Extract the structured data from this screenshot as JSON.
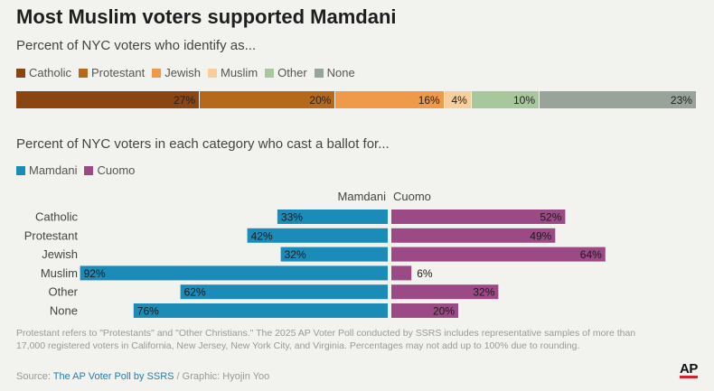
{
  "title": "Most Muslim voters supported Mamdani",
  "composition": {
    "subtitle": "Percent of NYC voters who identify as...",
    "legend": [
      {
        "label": "Catholic",
        "color": "#8b4513"
      },
      {
        "label": "Protestant",
        "color": "#b46a1a"
      },
      {
        "label": "Jewish",
        "color": "#ef9a4a"
      },
      {
        "label": "Muslim",
        "color": "#f7cf9c"
      },
      {
        "label": "Other",
        "color": "#a9c79c"
      },
      {
        "label": "None",
        "color": "#98a39a"
      }
    ],
    "segments": [
      {
        "label": "27%",
        "color": "#8b4513"
      },
      {
        "label": "20%",
        "color": "#b46a1a"
      },
      {
        "label": "16%",
        "color": "#ef9a4a"
      },
      {
        "label": "4%",
        "color": "#f7cf9c"
      },
      {
        "label": "10%",
        "color": "#a9c79c"
      },
      {
        "label": "23%",
        "color": "#98a39a"
      }
    ]
  },
  "vote": {
    "subtitle": "Percent of NYC voters in each category who cast a ballot for...",
    "legend": [
      {
        "label": "Mamdani",
        "color": "#1b8bb8"
      },
      {
        "label": "Cuomo",
        "color": "#9c4a86"
      }
    ]
  },
  "chart_data": [
    {
      "type": "bar",
      "subtype": "stacked-100",
      "title": "Percent of NYC voters who identify as...",
      "categories": [
        "Catholic",
        "Protestant",
        "Jewish",
        "Muslim",
        "Other",
        "None"
      ],
      "values": [
        27,
        20,
        16,
        4,
        10,
        23
      ],
      "value_labels": [
        "27%",
        "20%",
        "16%",
        "4%",
        "10%",
        "23%"
      ]
    },
    {
      "type": "bar",
      "subtype": "diverging",
      "title": "Percent of NYC voters in each category who cast a ballot for...",
      "categories": [
        "Catholic",
        "Protestant",
        "Jewish",
        "Muslim",
        "Other",
        "None"
      ],
      "series": [
        {
          "name": "Mamdani",
          "values": [
            33,
            42,
            32,
            92,
            62,
            76
          ],
          "labels": [
            "33%",
            "42%",
            "32%",
            "92%",
            "62%",
            "76%"
          ]
        },
        {
          "name": "Cuomo",
          "values": [
            52,
            49,
            64,
            6,
            32,
            20
          ],
          "labels": [
            "52%",
            "49%",
            "64%",
            "6%",
            "32%",
            "20%"
          ]
        }
      ],
      "column_headers": [
        "Mamdani",
        "Cuomo"
      ],
      "xlim": [
        0,
        100
      ]
    }
  ],
  "footnote": "Protestant refers to \"Protestants\" and \"Other Christians.\" The 2025 AP Voter Poll conducted by SSRS includes representative samples of more than 17,000 registered voters in California, New Jersey, New York City, and Virginia. Percentages may not add up to 100% due to rounding.",
  "source": {
    "prefix": "Source: ",
    "link": "The AP Voter Poll by SSRS",
    "suffix": " / Graphic: Hyojin Yoo"
  },
  "logo": "AP"
}
